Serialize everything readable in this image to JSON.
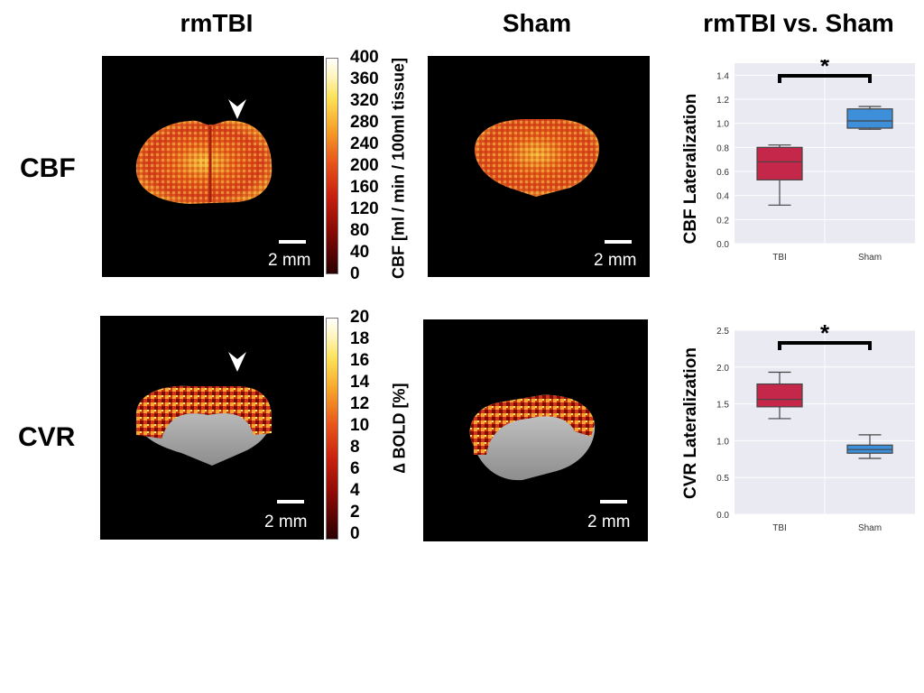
{
  "headers": {
    "col1": "rmTBI",
    "col2": "Sham",
    "col3": "rmTBI vs. Sham",
    "row1": "CBF",
    "row2": "CVR"
  },
  "scale_label": "2 mm",
  "colorbar_cbf": {
    "label": "CBF [ml / min / 100ml tissue]",
    "ticks": [
      "400",
      "360",
      "320",
      "280",
      "240",
      "200",
      "160",
      "120",
      "80",
      "40",
      "0"
    ]
  },
  "colorbar_cvr": {
    "label": "∆ BOLD [%]",
    "ticks": [
      "20",
      "18",
      "16",
      "14",
      "12",
      "10",
      "8",
      "6",
      "4",
      "2",
      "0"
    ]
  },
  "colors": {
    "tbi_box": "#c4274a",
    "sham_box": "#3d8fd9",
    "plot_bg": "#eaeaf2"
  },
  "chart_data": [
    {
      "type": "box",
      "ylabel": "CBF Lateralization",
      "categories": [
        "TBI",
        "Sham"
      ],
      "ylim": [
        0.0,
        1.5
      ],
      "yticks": [
        "0.0",
        "0.2",
        "0.4",
        "0.6",
        "0.8",
        "1.0",
        "1.2",
        "1.4"
      ],
      "grid": true,
      "significance": "*",
      "series": [
        {
          "category": "TBI",
          "min": 0.32,
          "q1": 0.53,
          "median": 0.68,
          "q3": 0.8,
          "max": 0.82
        },
        {
          "category": "Sham",
          "min": 0.95,
          "q1": 0.96,
          "median": 1.02,
          "q3": 1.12,
          "max": 1.14
        }
      ]
    },
    {
      "type": "box",
      "ylabel": "CVR Lateralization",
      "categories": [
        "TBI",
        "Sham"
      ],
      "ylim": [
        0.0,
        2.5
      ],
      "yticks": [
        "0.0",
        "0.5",
        "1.0",
        "1.5",
        "2.0",
        "2.5"
      ],
      "grid": true,
      "significance": "*",
      "series": [
        {
          "category": "TBI",
          "min": 1.3,
          "q1": 1.46,
          "median": 1.56,
          "q3": 1.77,
          "max": 1.93
        },
        {
          "category": "Sham",
          "min": 0.76,
          "q1": 0.83,
          "median": 0.88,
          "q3": 0.94,
          "max": 1.08
        }
      ]
    }
  ]
}
